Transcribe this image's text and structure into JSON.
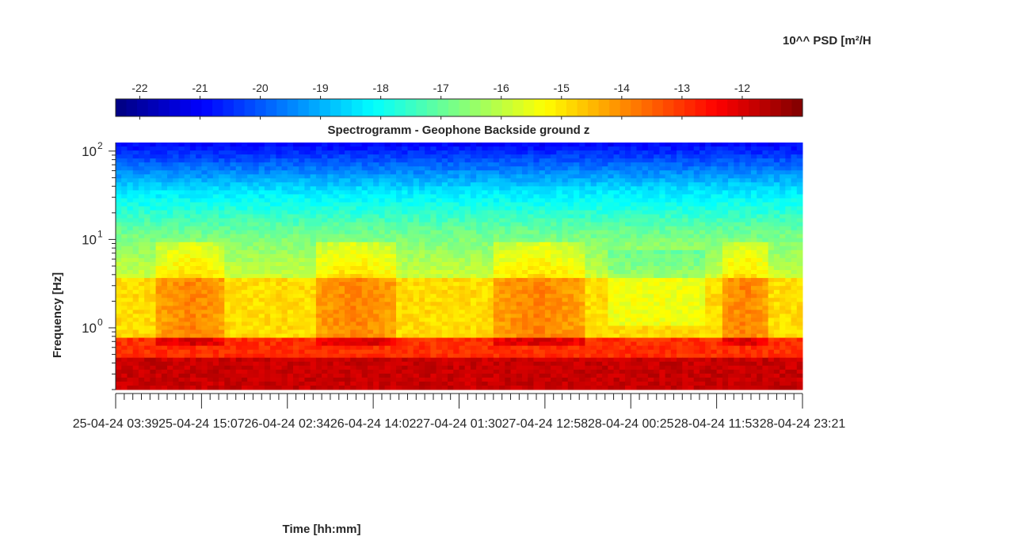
{
  "chart_data": {
    "type": "heatmap",
    "title": "Spectrogramm - Geophone Backside ground z",
    "xlabel": "Time [hh:mm]",
    "ylabel": "Frequency [Hz]",
    "colorbar_label": "10^^ PSD [m²/H",
    "colormap": "jet",
    "colorbar_range": [
      -22.4,
      -11
    ],
    "colorbar_ticks": [
      "-22",
      "-21",
      "-20",
      "-19",
      "-18",
      "-17",
      "-16",
      "-15",
      "-14",
      "-13",
      "-12"
    ],
    "colorbar_tick_values": [
      -22,
      -21,
      -20,
      -19,
      -18,
      -17,
      -16,
      -15,
      -14,
      -13,
      -12
    ],
    "yscale": "log",
    "ylim": [
      0.2,
      125
    ],
    "ytick_values": [
      1,
      10,
      100
    ],
    "yticks": [
      {
        "base": "10",
        "exp": "0"
      },
      {
        "base": "10",
        "exp": "1"
      },
      {
        "base": "10",
        "exp": "2"
      }
    ],
    "xticks": [
      "25-04-24 03:39",
      "25-04-24 15:07",
      "26-04-24 02:34",
      "26-04-24 14:02",
      "27-04-24 01:30",
      "27-04-24 12:58",
      "28-04-24 00:25",
      "28-04-24 11:53",
      "28-04-24 23:21"
    ],
    "x_time_range": [
      "25-04-24 03:39",
      "28-04-24 23:21"
    ],
    "grid": false,
    "colors": {
      "axis": "#262626",
      "background": "#ffffff"
    }
  }
}
